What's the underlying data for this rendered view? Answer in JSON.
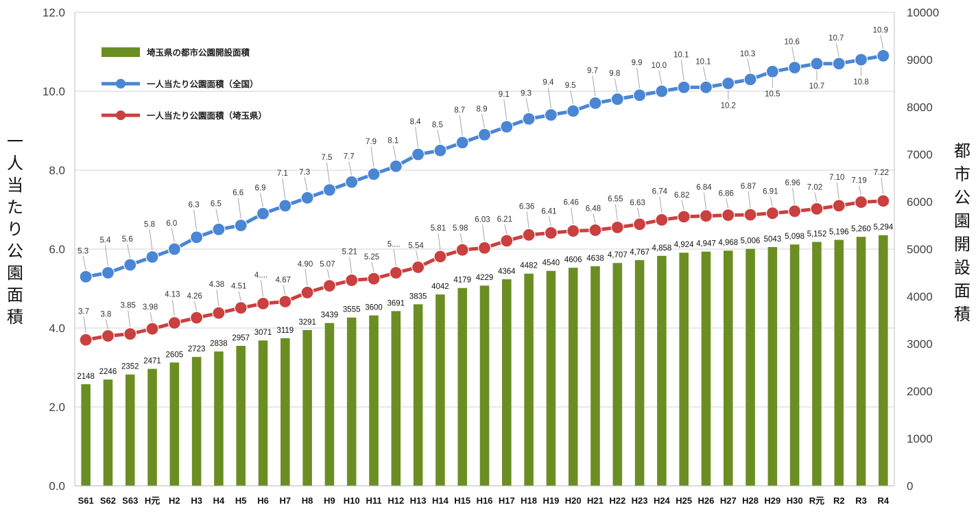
{
  "chart_data": {
    "type": "bar+line",
    "categories": [
      "S61",
      "S62",
      "S63",
      "H元",
      "H2",
      "H3",
      "H4",
      "H5",
      "H6",
      "H7",
      "H8",
      "H9",
      "H10",
      "H11",
      "H12",
      "H13",
      "H14",
      "H15",
      "H16",
      "H17",
      "H18",
      "H19",
      "H20",
      "H21",
      "H22",
      "H23",
      "H24",
      "H25",
      "H26",
      "H27",
      "H28",
      "H29",
      "H30",
      "R元",
      "R2",
      "R3",
      "R4"
    ],
    "legend": [
      {
        "key": "bars",
        "label": "埼玉県の都市公園開設面積",
        "color": "#6b8e23"
      },
      {
        "key": "national",
        "label": "一人当たり公園面積（全国）",
        "color": "#4a86d4"
      },
      {
        "key": "saitama",
        "label": "一人当たり公園面積（埼玉県）",
        "color": "#c9403f"
      }
    ],
    "bars": {
      "name": "埼玉県の都市公園開設面積",
      "axis": "right",
      "color": "#6b8e23",
      "values": [
        2148,
        2246,
        2352,
        2471,
        2605,
        2723,
        2838,
        2957,
        3071,
        3119,
        3291,
        3439,
        3555,
        3600,
        3691,
        3835,
        4042,
        4179,
        4229,
        4364,
        4482,
        4540,
        4606,
        4638,
        4707,
        4767,
        4858,
        4924,
        4947,
        4968,
        5006,
        5043,
        5098,
        5152,
        5196,
        5260,
        5294
      ],
      "labels": [
        "2148",
        "2246",
        "2352",
        "2471",
        "2605",
        "2723",
        "2838",
        "2957",
        "3071",
        "3119",
        "3291",
        "3439",
        "3555",
        "3600",
        "3691",
        "3835",
        "4042",
        "4179",
        "4229",
        "4364",
        "4482",
        "4540",
        "4606",
        "4638",
        "4,707",
        "4,767",
        "4,858",
        "4,924",
        "4,947",
        "4,968",
        "5,006",
        "5043",
        "5,098",
        "5,152",
        "5,196",
        "5,260",
        "5,294"
      ]
    },
    "lines": [
      {
        "name": "一人当たり公園面積（全国）",
        "key": "national",
        "axis": "left",
        "color": "#4a86d4",
        "values": [
          5.3,
          5.4,
          5.6,
          5.8,
          6.0,
          6.3,
          6.5,
          6.6,
          6.9,
          7.1,
          7.3,
          7.5,
          7.7,
          7.9,
          8.1,
          8.4,
          8.5,
          8.7,
          8.9,
          9.1,
          9.3,
          9.4,
          9.5,
          9.7,
          9.8,
          9.9,
          10.0,
          10.1,
          10.1,
          10.2,
          10.3,
          10.5,
          10.6,
          10.7,
          10.7,
          10.8,
          10.9
        ],
        "labels": [
          "5.3",
          "5.4",
          "5.6",
          "5.8",
          "6.0",
          "6.3",
          "6.5",
          "6.6",
          "6.9",
          "7.1",
          "7.3",
          "7.5",
          "7.7",
          "7.9",
          "8.1",
          "8.4",
          "8.5",
          "8.7",
          "8.9",
          "9.1",
          "9.3",
          "9.4",
          "9.5",
          "9.7",
          "9.8",
          "9.9",
          "10.0",
          "10.1",
          "10.1",
          "10.2",
          "10.3",
          "10.5",
          "10.6",
          "10.7",
          "10.7",
          "10.8",
          "10.9"
        ]
      },
      {
        "name": "一人当たり公園面積（埼玉県）",
        "key": "saitama",
        "axis": "left",
        "color": "#c9403f",
        "values": [
          3.7,
          3.8,
          3.85,
          3.98,
          4.13,
          4.26,
          4.38,
          4.51,
          4.62,
          4.67,
          4.9,
          5.07,
          5.21,
          5.25,
          5.4,
          5.54,
          5.81,
          5.98,
          6.03,
          6.21,
          6.36,
          6.41,
          6.46,
          6.48,
          6.55,
          6.63,
          6.74,
          6.82,
          6.84,
          6.86,
          6.87,
          6.91,
          6.96,
          7.02,
          7.1,
          7.19,
          7.22
        ],
        "labels": [
          "3.7",
          "3.8",
          "3.85",
          "3.98",
          "4.13",
          "4.26",
          "4.38",
          "4.51",
          "4....",
          "4.67",
          "4.90",
          "5.07",
          "5.21",
          "5.25",
          "5....",
          "5.54",
          "5.81",
          "5.98",
          "6.03",
          "6.21",
          "6.36",
          "6.41",
          "6.46",
          "6.48",
          "6.55",
          "6.63",
          "6.74",
          "6.82",
          "6.84",
          "6.86",
          "6.87",
          "6.91",
          "6.96",
          "7.02",
          "7.10",
          "7.19",
          "7.22"
        ]
      }
    ],
    "y_left": {
      "label": "一人当たり公園面積",
      "ylim": [
        0,
        12
      ],
      "ticks": [
        "0.0",
        "2.0",
        "4.0",
        "6.0",
        "8.0",
        "10.0",
        "12.0"
      ]
    },
    "y_right": {
      "label": "都市公園開設面積",
      "ylim": [
        0,
        10000
      ],
      "ticks": [
        "0",
        "1000",
        "2000",
        "3000",
        "4000",
        "5000",
        "6000",
        "7000",
        "8000",
        "9000",
        "10000"
      ]
    },
    "grid": true,
    "legend_position": "top-left"
  }
}
